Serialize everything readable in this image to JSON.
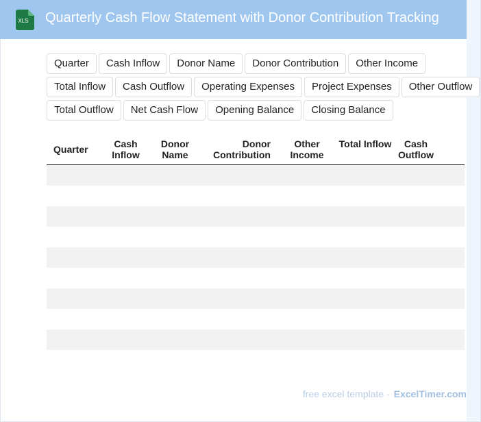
{
  "header": {
    "icon_label": "XLS",
    "title": "Quarterly Cash Flow Statement with Donor Contribution Tracking"
  },
  "tags": [
    "Quarter",
    "Cash Inflow",
    "Donor Name",
    "Donor Contribution",
    "Other Income",
    "Total Inflow",
    "Cash Outflow",
    "Operating Expenses",
    "Project Expenses",
    "Other Outflow",
    "Total Outflow",
    "Net Cash Flow",
    "Opening Balance",
    "Closing Balance"
  ],
  "table": {
    "columns": [
      "Quarter",
      "Cash Inflow",
      "Donor Name",
      "Donor Contribution",
      "Other Income",
      "Total Inflow",
      "Cash Outflow"
    ]
  },
  "footer": {
    "text": "free excel template -",
    "brand": "ExcelTimer.com"
  }
}
